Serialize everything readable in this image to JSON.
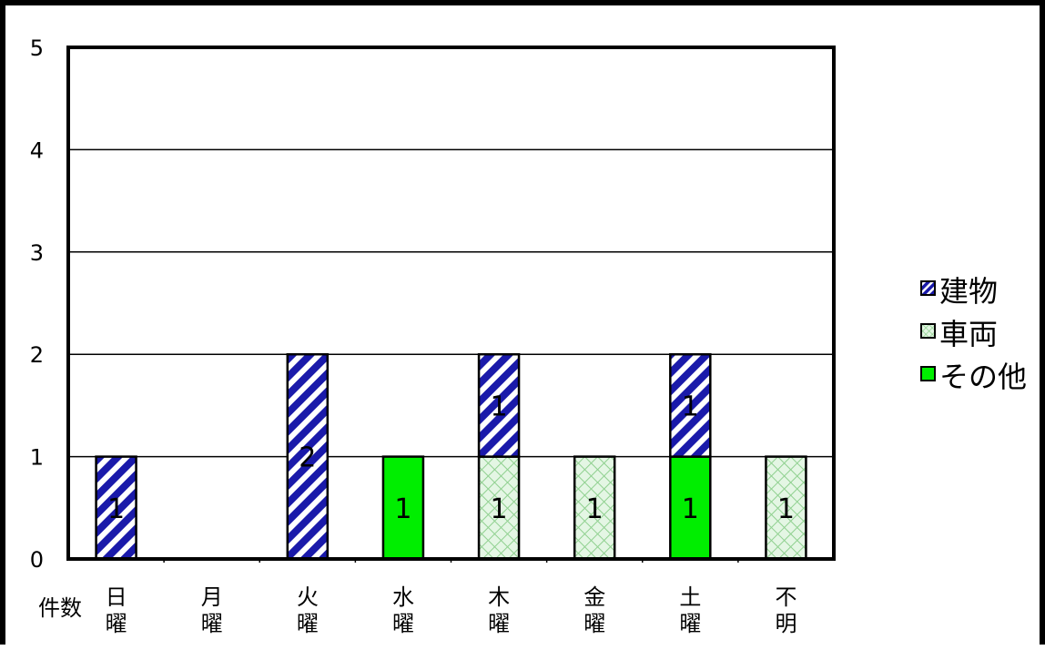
{
  "chart_data": {
    "type": "bar",
    "stacked": true,
    "categories": [
      "日\n曜",
      "月\n曜",
      "火\n曜",
      "水\n曜",
      "木\n曜",
      "金\n曜",
      "土\n曜",
      "不\n明"
    ],
    "series": [
      {
        "name": "車両",
        "values": [
          0,
          0,
          0,
          0,
          1,
          1,
          0,
          1
        ],
        "color": "#cceccc",
        "pattern": "crosshatch"
      },
      {
        "name": "その他",
        "values": [
          0,
          0,
          0,
          1,
          0,
          0,
          1,
          0
        ],
        "color": "#00ee00",
        "pattern": "solid"
      },
      {
        "name": "建物",
        "values": [
          1,
          0,
          2,
          0,
          1,
          0,
          1,
          0
        ],
        "color": "#1a1aaa",
        "pattern": "diagonal-stripes"
      }
    ],
    "legend_order": [
      "建物",
      "車両",
      "その他"
    ],
    "ylabel": "件数",
    "yticks": [
      0,
      1,
      2,
      3,
      4,
      5
    ],
    "ylim": [
      0,
      5
    ],
    "grid": true,
    "legend_position": "right"
  }
}
